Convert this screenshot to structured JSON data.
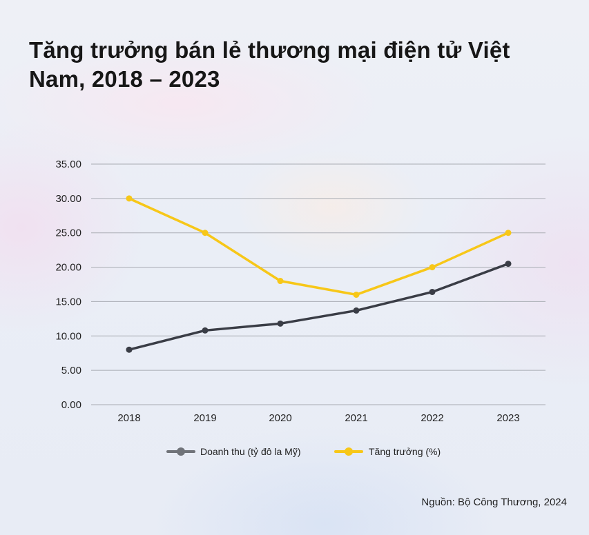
{
  "chart_data": {
    "type": "line",
    "title": "Tăng trưởng bán lẻ thương mại điện tử Việt Nam, 2018 – 2023",
    "categories": [
      "2018",
      "2019",
      "2020",
      "2021",
      "2022",
      "2023"
    ],
    "y_ticks": [
      "0.00",
      "5.00",
      "10.00",
      "15.00",
      "20.00",
      "25.00",
      "30.00",
      "35.00"
    ],
    "ylim": [
      0,
      35
    ],
    "grid": true,
    "legend_position": "bottom",
    "series": [
      {
        "name": "Doanh thu (tỷ đô la Mỹ)",
        "values": [
          8.0,
          10.8,
          11.8,
          13.7,
          16.4,
          20.5
        ],
        "color": "#3a3d46",
        "legend_color": "#707379"
      },
      {
        "name": "Tăng trưởng (%)",
        "values": [
          30.0,
          25.0,
          18.0,
          16.0,
          20.0,
          25.0
        ],
        "color": "#f7c718",
        "legend_color": "#f7c718"
      }
    ]
  },
  "source": "Nguồn: Bộ Công Thương, 2024"
}
